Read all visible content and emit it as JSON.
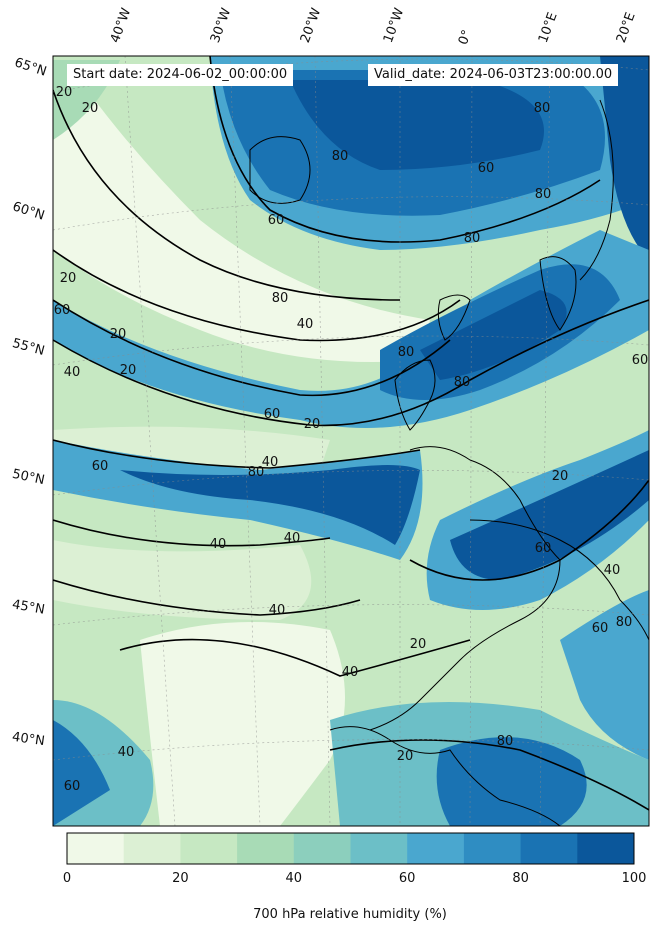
{
  "header": {
    "start_date": "Start date: 2024-06-02_00:00:00",
    "valid_date": "Valid_date: 2024-06-03T23:00:00.00"
  },
  "map": {
    "projection": "polar-stereographic",
    "land_outline_color": "#000000",
    "lon_labels": [
      "40°W",
      "30°W",
      "20°W",
      "10°W",
      "0°",
      "10°E",
      "20°E"
    ],
    "lat_labels": [
      "65°N",
      "60°N",
      "55°N",
      "50°N",
      "45°N",
      "40°N"
    ],
    "contour_levels": [
      "20",
      "40",
      "60",
      "80"
    ],
    "contour_labels": [
      {
        "text": "20"
      },
      {
        "text": "20"
      },
      {
        "text": "20"
      },
      {
        "text": "20"
      },
      {
        "text": "20"
      },
      {
        "text": "20"
      },
      {
        "text": "20"
      },
      {
        "text": "20"
      },
      {
        "text": "20"
      },
      {
        "text": "40"
      },
      {
        "text": "40"
      },
      {
        "text": "40"
      },
      {
        "text": "40"
      },
      {
        "text": "40"
      },
      {
        "text": "40"
      },
      {
        "text": "40"
      },
      {
        "text": "40"
      },
      {
        "text": "40"
      },
      {
        "text": "60"
      },
      {
        "text": "60"
      },
      {
        "text": "60"
      },
      {
        "text": "60"
      },
      {
        "text": "60"
      },
      {
        "text": "60"
      },
      {
        "text": "60"
      },
      {
        "text": "60"
      },
      {
        "text": "60"
      },
      {
        "text": "80"
      },
      {
        "text": "80"
      },
      {
        "text": "80"
      },
      {
        "text": "80"
      },
      {
        "text": "80"
      },
      {
        "text": "80"
      },
      {
        "text": "80"
      },
      {
        "text": "80"
      },
      {
        "text": "80"
      },
      {
        "text": "80"
      }
    ]
  },
  "colorbar": {
    "label": "700 hPa relative humidity (%)",
    "ticks": [
      "0",
      "20",
      "40",
      "60",
      "80",
      "100"
    ],
    "bin_edges": [
      0,
      10,
      20,
      30,
      40,
      50,
      60,
      70,
      80,
      90,
      100
    ],
    "colors": [
      "#f0f9e8",
      "#dcf0d4",
      "#c6e8c2",
      "#a8dbb6",
      "#8ccfbd",
      "#6cbfc7",
      "#4aa7cf",
      "#2f8dc2",
      "#1a73b3",
      "#0b579b"
    ]
  }
}
